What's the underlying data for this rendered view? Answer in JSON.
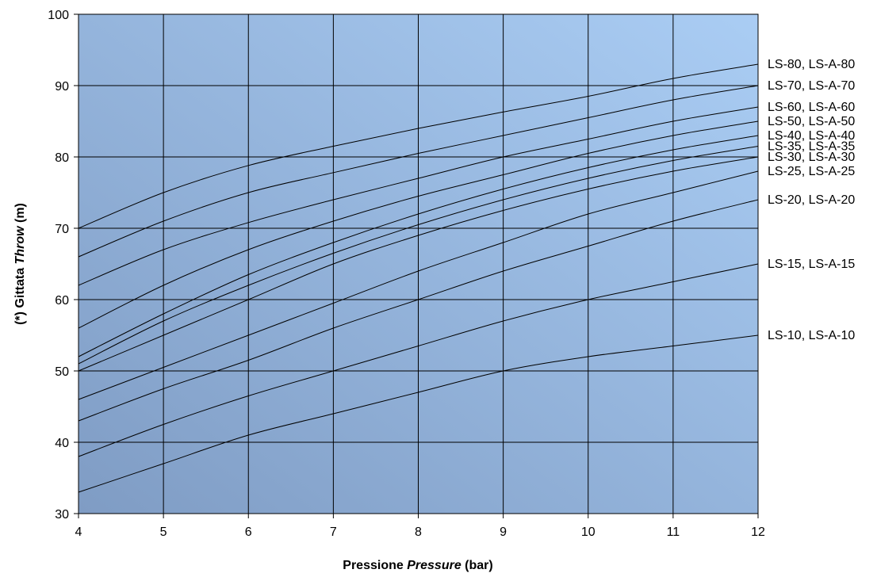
{
  "chart_data": {
    "type": "line",
    "xlabel": {
      "prefix": "Pressione ",
      "italic": "Pressure",
      "suffix": " (bar)"
    },
    "ylabel": {
      "prefix": "(*)  Gittata ",
      "italic": "Throw",
      "suffix": " (m)"
    },
    "xlim": [
      4,
      12
    ],
    "ylim": [
      30,
      100
    ],
    "x_ticks": [
      4,
      5,
      6,
      7,
      8,
      9,
      10,
      11,
      12
    ],
    "y_ticks": [
      30,
      40,
      50,
      60,
      70,
      80,
      90,
      100
    ],
    "grid": true,
    "background": {
      "gradient_from": "#7f9cc4",
      "gradient_to": "#aacdf4"
    },
    "line_color": "#000000",
    "series": [
      {
        "name": "LS-80, LS-A-80",
        "x": [
          4,
          5,
          6,
          7,
          8,
          9,
          10,
          11,
          12
        ],
        "y": [
          70,
          75,
          78.8,
          81.5,
          84,
          86.3,
          88.5,
          91,
          93
        ]
      },
      {
        "name": "LS-70, LS-A-70",
        "x": [
          4,
          5,
          6,
          7,
          8,
          9,
          10,
          11,
          12
        ],
        "y": [
          66,
          71,
          75,
          77.8,
          80.5,
          83,
          85.5,
          88,
          90
        ]
      },
      {
        "name": "LS-60, LS-A-60",
        "x": [
          4,
          5,
          6,
          7,
          8,
          9,
          10,
          11,
          12
        ],
        "y": [
          62,
          67,
          70.8,
          74,
          77,
          80,
          82.5,
          85,
          87
        ]
      },
      {
        "name": "LS-50, LS-A-50",
        "x": [
          4,
          5,
          6,
          7,
          8,
          9,
          10,
          11,
          12
        ],
        "y": [
          56,
          62,
          67,
          71,
          74.5,
          77.5,
          80.5,
          83,
          85
        ]
      },
      {
        "name": "LS-40, LS-A-40",
        "x": [
          4,
          5,
          6,
          7,
          8,
          9,
          10,
          11,
          12
        ],
        "y": [
          52,
          58,
          63.5,
          68,
          72,
          75.5,
          78.5,
          81,
          83
        ]
      },
      {
        "name": "LS-35, LS-A-35",
        "x": [
          4,
          5,
          6,
          7,
          8,
          9,
          10,
          11,
          12
        ],
        "y": [
          51,
          57,
          62,
          66.5,
          70.5,
          74,
          77,
          79.5,
          81.5
        ]
      },
      {
        "name": "LS-30, LS-A-30",
        "x": [
          4,
          5,
          6,
          7,
          8,
          9,
          10,
          11,
          12
        ],
        "y": [
          50,
          55,
          60,
          65,
          69,
          72.5,
          75.5,
          78,
          80
        ]
      },
      {
        "name": "LS-25, LS-A-25",
        "x": [
          4,
          5,
          6,
          7,
          8,
          9,
          10,
          11,
          12
        ],
        "y": [
          46,
          50.5,
          55,
          59.5,
          64,
          68,
          72,
          75,
          78
        ]
      },
      {
        "name": "LS-20, LS-A-20",
        "x": [
          4,
          5,
          6,
          7,
          8,
          9,
          10,
          11,
          12
        ],
        "y": [
          43,
          47.5,
          51.5,
          56,
          60,
          64,
          67.5,
          71,
          74
        ]
      },
      {
        "name": "LS-15, LS-A-15",
        "x": [
          4,
          5,
          6,
          7,
          8,
          9,
          10,
          11,
          12
        ],
        "y": [
          38,
          42.5,
          46.5,
          50,
          53.5,
          57,
          60,
          62.5,
          65
        ]
      },
      {
        "name": "LS-10, LS-A-10",
        "x": [
          4,
          5,
          6,
          7,
          8,
          9,
          10,
          11,
          12
        ],
        "y": [
          33,
          37,
          41,
          44,
          47,
          50,
          52,
          53.5,
          55
        ]
      }
    ],
    "series_label_positions_y": [
      93,
      90,
      87,
      85,
      83,
      81.5,
      80,
      78,
      74,
      65,
      55
    ]
  }
}
